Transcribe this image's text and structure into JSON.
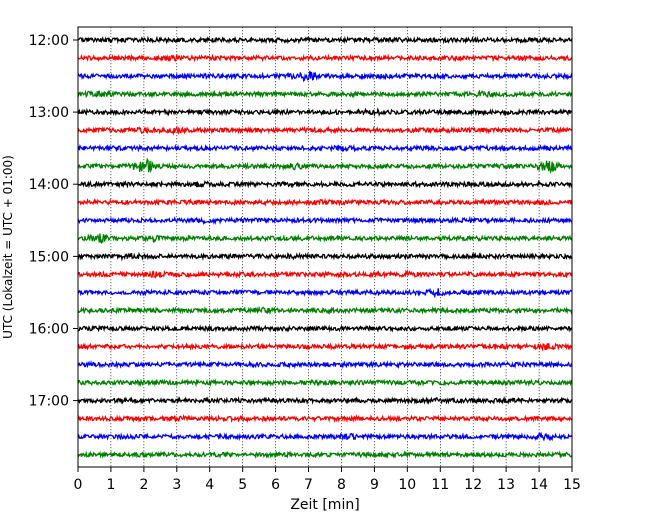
{
  "chart_data": {
    "type": "line",
    "title": "",
    "xlabel": "Zeit  [min]",
    "ylabel": "UTC (Lokalzeit = UTC + 01:00)",
    "xlim": [
      0,
      15
    ],
    "x_ticks": [
      0,
      1,
      2,
      3,
      4,
      5,
      6,
      7,
      8,
      9,
      10,
      11,
      12,
      13,
      14,
      15
    ],
    "y_ticks": [
      "12:00",
      "13:00",
      "14:00",
      "15:00",
      "16:00",
      "17:00"
    ],
    "grid_x": true,
    "trace_interval_minutes": 15,
    "trace_count": 24,
    "trace_colors": [
      "#000000",
      "#ff0000",
      "#0000ff",
      "#008000"
    ],
    "traces": [
      {
        "time": "12:00",
        "color": "#000000",
        "events": []
      },
      {
        "time": "12:15",
        "color": "#ff0000",
        "events": [
          {
            "x": 3.0,
            "amp": 1.6
          }
        ]
      },
      {
        "time": "12:30",
        "color": "#0000ff",
        "events": [
          {
            "x": 6.9,
            "amp": 3.2
          }
        ]
      },
      {
        "time": "12:45",
        "color": "#008000",
        "events": [
          {
            "x": 0.6,
            "amp": 1.8
          },
          {
            "x": 12.3,
            "amp": 1.6
          }
        ]
      },
      {
        "time": "13:00",
        "color": "#000000",
        "events": [
          {
            "x": 8.9,
            "amp": 1.6
          }
        ]
      },
      {
        "time": "13:15",
        "color": "#ff0000",
        "events": [
          {
            "x": 1.9,
            "amp": 1.5
          },
          {
            "x": 2.9,
            "amp": 1.5
          }
        ]
      },
      {
        "time": "13:30",
        "color": "#0000ff",
        "events": [
          {
            "x": 8.1,
            "amp": 1.5
          }
        ]
      },
      {
        "time": "13:45",
        "color": "#008000",
        "events": [
          {
            "x": 2.0,
            "amp": 3.6
          },
          {
            "x": 6.6,
            "amp": 1.7
          },
          {
            "x": 14.3,
            "amp": 3.0
          }
        ]
      },
      {
        "time": "14:00",
        "color": "#000000",
        "events": [
          {
            "x": 3.7,
            "amp": 1.6
          }
        ]
      },
      {
        "time": "14:15",
        "color": "#ff0000",
        "events": [
          {
            "x": 7.3,
            "amp": 1.5
          }
        ]
      },
      {
        "time": "14:30",
        "color": "#0000ff",
        "events": [
          {
            "x": 3.8,
            "amp": 1.4
          }
        ]
      },
      {
        "time": "14:45",
        "color": "#008000",
        "events": [
          {
            "x": 0.6,
            "amp": 2.4
          },
          {
            "x": 2.3,
            "amp": 1.5
          }
        ]
      },
      {
        "time": "15:00",
        "color": "#000000",
        "events": [
          {
            "x": 1.6,
            "amp": 1.7
          },
          {
            "x": 6.5,
            "amp": 1.4
          }
        ]
      },
      {
        "time": "15:15",
        "color": "#ff0000",
        "events": [
          {
            "x": 2.4,
            "amp": 1.6
          },
          {
            "x": 10.0,
            "amp": 1.4
          }
        ]
      },
      {
        "time": "15:30",
        "color": "#0000ff",
        "events": [
          {
            "x": 10.9,
            "amp": 2.0
          }
        ]
      },
      {
        "time": "15:45",
        "color": "#008000",
        "events": [
          {
            "x": 5.6,
            "amp": 1.6
          }
        ]
      },
      {
        "time": "16:00",
        "color": "#000000",
        "events": []
      },
      {
        "time": "16:15",
        "color": "#ff0000",
        "events": [
          {
            "x": 12.6,
            "amp": 1.5
          },
          {
            "x": 14.2,
            "amp": 1.8
          }
        ]
      },
      {
        "time": "16:30",
        "color": "#0000ff",
        "events": []
      },
      {
        "time": "16:45",
        "color": "#008000",
        "events": []
      },
      {
        "time": "17:00",
        "color": "#000000",
        "events": [
          {
            "x": 11.0,
            "amp": 1.4
          },
          {
            "x": 12.8,
            "amp": 1.3
          }
        ]
      },
      {
        "time": "17:15",
        "color": "#ff0000",
        "events": [
          {
            "x": 3.0,
            "amp": 1.5
          }
        ]
      },
      {
        "time": "17:30",
        "color": "#0000ff",
        "events": [
          {
            "x": 8.2,
            "amp": 1.7
          },
          {
            "x": 14.1,
            "amp": 1.7
          }
        ]
      },
      {
        "time": "17:45",
        "color": "#008000",
        "events": []
      }
    ]
  }
}
